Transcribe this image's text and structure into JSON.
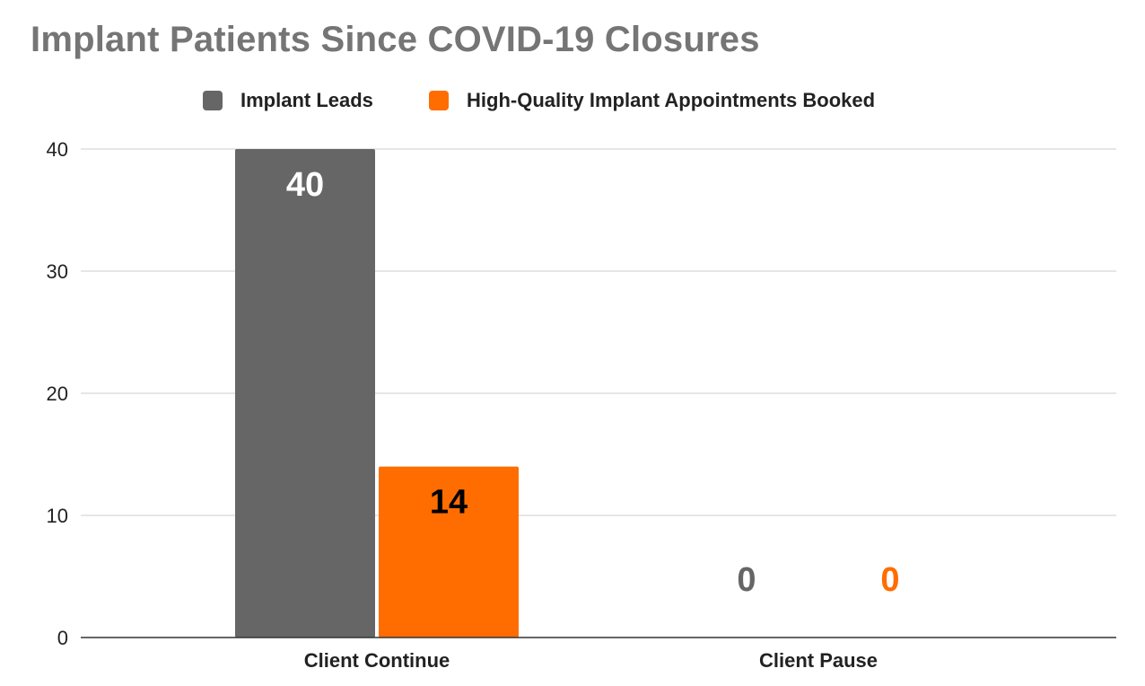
{
  "chart_data": {
    "type": "bar",
    "title": "Implant Patients Since COVID-19 Closures",
    "xlabel": "",
    "ylabel": "",
    "categories": [
      "Client Continue",
      "Client Pause"
    ],
    "series": [
      {
        "name": "Implant Leads",
        "values": [
          40,
          0
        ],
        "color": "#666666",
        "inside_label_color": "#ffffff",
        "zero_label_color": "#666666"
      },
      {
        "name": "High-Quality Implant Appointments Booked",
        "values": [
          14,
          0
        ],
        "color": "#ff6d01",
        "inside_label_color": "#000000",
        "zero_label_color": "#ff6d01"
      }
    ],
    "ylim": [
      0,
      40
    ],
    "yticks": [
      "0",
      "10",
      "20",
      "30",
      "40"
    ],
    "grid": true,
    "legend_position": "top",
    "data_labels": true
  }
}
